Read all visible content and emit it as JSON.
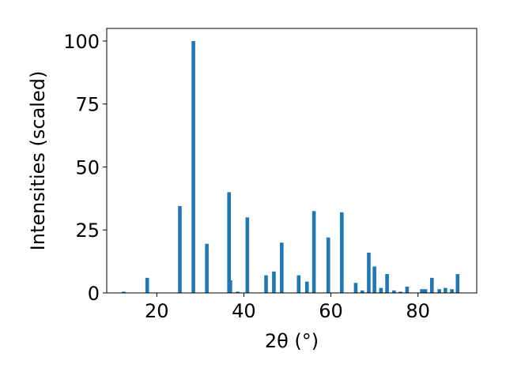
{
  "chart_data": {
    "type": "bar",
    "title": "",
    "xlabel": "2θ (°)",
    "ylabel": "Intensities (scaled)",
    "xlim": [
      8.5,
      93.5
    ],
    "ylim": [
      0,
      105
    ],
    "xticks": [
      20,
      40,
      60,
      80
    ],
    "yticks": [
      0,
      25,
      50,
      75,
      100
    ],
    "grid": false,
    "bar_color": "#1f77b4",
    "x": [
      12.4,
      17.8,
      25.3,
      28.4,
      31.5,
      36.6,
      36.9,
      38.6,
      40.8,
      45.1,
      46.9,
      48.7,
      52.6,
      54.5,
      56.1,
      59.4,
      62.5,
      65.7,
      67.2,
      68.7,
      70.0,
      71.5,
      72.9,
      74.5,
      76.0,
      77.5,
      80.9,
      81.7,
      83.2,
      84.9,
      86.3,
      87.8,
      89.1
    ],
    "values": [
      0.5,
      6,
      34.5,
      100,
      19.5,
      40,
      5,
      0.5,
      30,
      7,
      8.5,
      20,
      7,
      4.5,
      32.5,
      22,
      32,
      4,
      1,
      16,
      10.5,
      2,
      7.5,
      1,
      0.5,
      2.5,
      1.5,
      1.5,
      6,
      1.5,
      2,
      1.5,
      7.5
    ]
  }
}
